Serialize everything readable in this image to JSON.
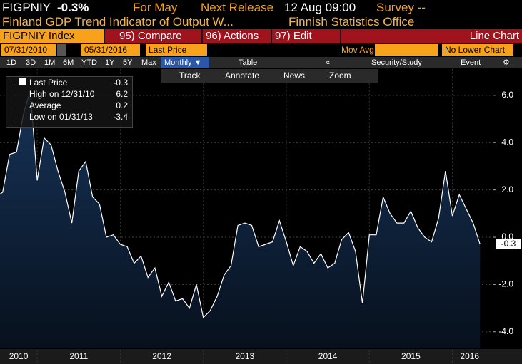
{
  "header": {
    "ticker": "FIGPNIY",
    "change": "-0.3%",
    "period": "For May",
    "next_release_label": "Next Release",
    "next_release": "12 Aug 09:00",
    "survey": "Survey --",
    "description": "Finland GDP Trend Indicator of Output W...",
    "source": "Finnish Statistics Office"
  },
  "toolbar": {
    "security": "FIGPNIY Index",
    "buttons": [
      "95) Compare",
      "96) Actions",
      "97) Edit"
    ],
    "chart_type": "Line Chart",
    "start_date": "07/31/2010",
    "end_date": "05/31/2016",
    "field": "Last Price",
    "study": "Mov Avg",
    "lower_chart": "No Lower Chart",
    "periods": [
      "1D",
      "3D",
      "1M",
      "6M",
      "YTD",
      "1Y",
      "5Y",
      "Max"
    ],
    "frequency": "Monthly ▼",
    "table": "Table",
    "security_study": "Security/Study",
    "event": "Event",
    "tools": [
      "Track",
      "Annotate",
      "News",
      "Zoom"
    ]
  },
  "legend": [
    {
      "label": "Last Price",
      "value": -0.3
    },
    {
      "label": "High on 12/31/10",
      "value": 6.2
    },
    {
      "label": "Average",
      "value": 0.2
    },
    {
      "label": "Low on 01/31/13",
      "value": -3.4
    }
  ],
  "chart_data": {
    "type": "area",
    "color": "#ffffff",
    "categories": [
      null,
      null,
      null,
      null,
      null,
      null,
      null,
      null,
      null,
      null,
      null,
      null,
      null,
      null,
      null,
      null,
      null,
      null,
      null,
      null,
      null,
      null,
      null,
      null,
      null,
      null,
      null,
      null,
      null,
      null,
      null,
      null,
      null,
      null,
      null,
      null,
      null,
      null,
      null,
      null,
      null,
      null,
      null,
      null,
      null,
      null,
      null,
      null,
      null,
      null,
      null,
      null,
      null,
      null,
      null,
      null,
      null,
      null,
      null,
      null,
      null,
      null,
      null,
      null,
      null,
      null,
      null,
      null,
      null,
      null,
      null
    ],
    "values": [
      1.7,
      1.9,
      3.5,
      3.6,
      5.2,
      6.2,
      2.4,
      4.2,
      3.9,
      2.8,
      1.9,
      0.6,
      2.8,
      3.2,
      1.7,
      1.4,
      0.0,
      0.1,
      -0.3,
      -0.4,
      -1.1,
      -0.8,
      -1.7,
      -1.3,
      -2.5,
      -1.9,
      -2.7,
      -2.6,
      -3.0,
      -2.0,
      -3.4,
      -3.1,
      -2.5,
      -1.6,
      -1.2,
      0.5,
      0.6,
      0.5,
      -0.4,
      -0.3,
      -0.2,
      0.7,
      -0.2,
      -1.2,
      -0.4,
      -0.6,
      -1.1,
      -0.7,
      -1.3,
      -1.1,
      -0.1,
      0.2,
      -0.6,
      -2.8,
      0.1,
      0.1,
      1.7,
      1.0,
      0.6,
      0.6,
      1.1,
      0.4,
      0.0,
      -0.2,
      0.8,
      2.8,
      0.9,
      1.8,
      1.2,
      0.6,
      -0.3
    ],
    "year_labels": [
      "2010",
      "2011",
      "2012",
      "2013",
      "2014",
      "2015",
      "2016"
    ],
    "ylim": [
      -4.7,
      6.7
    ],
    "yticks": [
      {
        "value": 6,
        "label": "6.0"
      },
      {
        "value": 4,
        "label": "4.0"
      },
      {
        "value": 2,
        "label": "2.0"
      },
      {
        "value": 0,
        "label": "0.0"
      },
      {
        "value": -2,
        "label": "-2.0"
      },
      {
        "value": -4,
        "label": "-4.0"
      }
    ],
    "grid": true
  }
}
